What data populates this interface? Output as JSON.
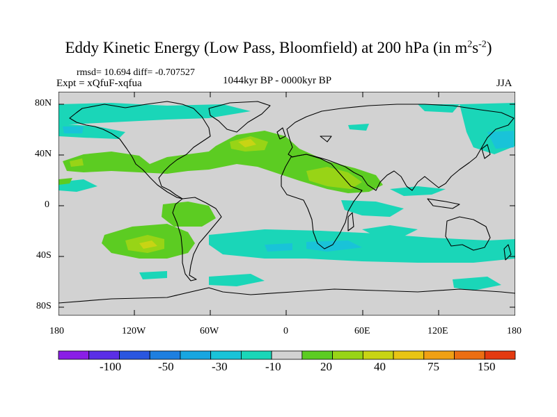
{
  "title": {
    "main": "Eddy Kinetic Energy (Low Pass, Bloomfield) at 200 hPa (in m",
    "sup1": "2",
    "mid": "s",
    "sup2": "-2",
    "end": ")"
  },
  "stats": "rmsd= 10.694 diff= -0.707527",
  "experiment": "Expt = xQfuF-xqfua",
  "period": "1044kyr BP - 0000kyr BP",
  "season": "JJA",
  "lat_labels": [
    "80N",
    "40N",
    "0",
    "40S",
    "80S"
  ],
  "lon_labels": [
    "180",
    "120W",
    "60W",
    "0",
    "60E",
    "120E",
    "180"
  ],
  "colorbar": {
    "colors": [
      "#8a1ee6",
      "#5a2ee6",
      "#2a56e0",
      "#1e7fe0",
      "#18a6e0",
      "#19c3d8",
      "#1ad6b8",
      "#d2d2d2",
      "#5ccc22",
      "#98d416",
      "#c8d414",
      "#e8c414",
      "#f0a014",
      "#ec6e12",
      "#e43a10"
    ],
    "labels": [
      "-100",
      "-50",
      "-30",
      "-10",
      "20",
      "40",
      "75",
      "150"
    ]
  },
  "palette": {
    "background": "#d2d2d2",
    "cyan": "#1ad6b8",
    "light_blue": "#19c3d8",
    "green": "#5ccc22",
    "yellow_green": "#98d416",
    "olive": "#c8d414"
  }
}
